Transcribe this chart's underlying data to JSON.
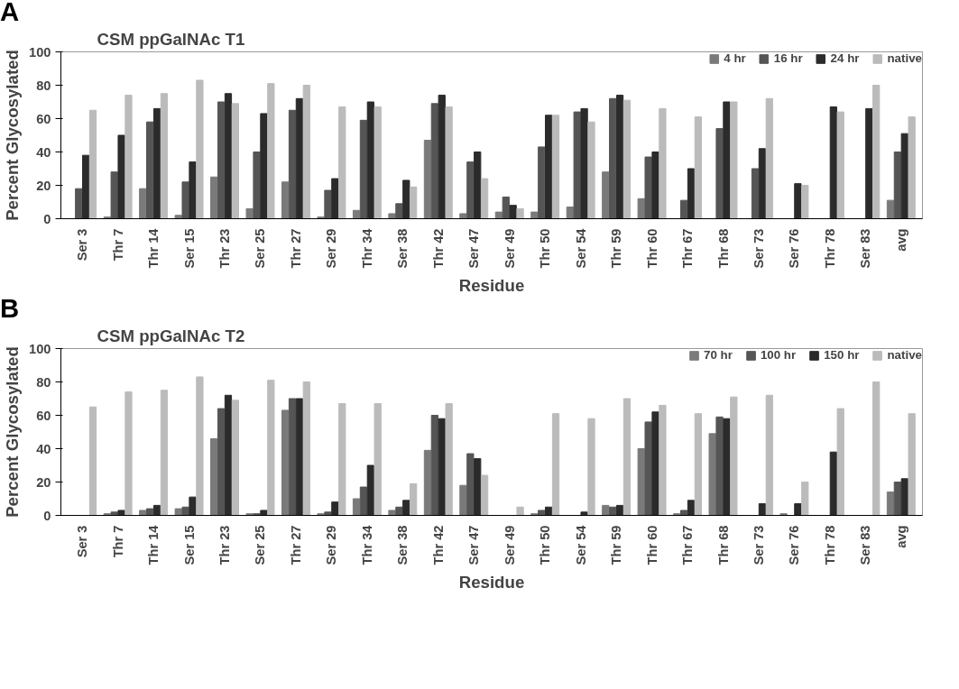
{
  "chart_data": [
    {
      "type": "bar",
      "title": "CSM ppGalNAc T1",
      "xlabel": "Residue",
      "ylabel": "Percent Glycosylated",
      "annotations": [
        "A"
      ],
      "categories": [
        "Ser 3",
        "Thr 7",
        "Thr 14",
        "Ser 15",
        "Thr 23",
        "Ser 25",
        "Thr 27",
        "Ser 29",
        "Thr 34",
        "Ser 38",
        "Thr 42",
        "Ser 47",
        "Ser 49",
        "Thr 50",
        "Ser 54",
        "Thr 59",
        "Thr 60",
        "Thr 67",
        "Thr 68",
        "Ser 73",
        "Ser 76",
        "Thr 78",
        "Ser 83",
        "avg"
      ],
      "series": [
        {
          "name": "4 hr",
          "color": "#7a7a7a",
          "values": [
            0,
            1,
            18,
            2,
            25,
            6,
            22,
            1,
            5,
            3,
            47,
            3,
            4,
            4,
            7,
            28,
            12,
            0,
            0,
            0,
            0,
            0,
            0,
            11
          ]
        },
        {
          "name": "16 hr",
          "color": "#555555",
          "values": [
            18,
            28,
            58,
            22,
            70,
            40,
            65,
            17,
            59,
            9,
            69,
            34,
            13,
            43,
            64,
            72,
            37,
            11,
            54,
            30,
            0,
            0,
            0,
            40
          ]
        },
        {
          "name": "24 hr",
          "color": "#2b2b2b",
          "values": [
            38,
            50,
            66,
            34,
            75,
            63,
            72,
            24,
            70,
            23,
            74,
            40,
            8,
            62,
            66,
            74,
            40,
            30,
            70,
            42,
            21,
            67,
            66,
            51
          ]
        },
        {
          "name": "native",
          "color": "#bbbbbb",
          "values": [
            65,
            74,
            75,
            83,
            69,
            81,
            80,
            67,
            67,
            19,
            67,
            24,
            6,
            62,
            58,
            71,
            66,
            61,
            70,
            72,
            20,
            64,
            80,
            61
          ]
        }
      ],
      "ylim": [
        0,
        100
      ],
      "yticks": [
        0,
        20,
        40,
        60,
        80,
        100
      ],
      "legend": "top right"
    },
    {
      "type": "bar",
      "title": "CSM ppGalNAc T2",
      "xlabel": "Residue",
      "ylabel": "Percent Glycosylated",
      "annotations": [
        "B"
      ],
      "categories": [
        "Ser 3",
        "Thr 7",
        "Thr 14",
        "Ser 15",
        "Thr 23",
        "Ser 25",
        "Thr 27",
        "Ser 29",
        "Thr 34",
        "Ser 38",
        "Thr 42",
        "Ser 47",
        "Ser 49",
        "Thr 50",
        "Ser 54",
        "Thr 59",
        "Thr 60",
        "Thr 67",
        "Thr 68",
        "Ser 73",
        "Ser 76",
        "Thr 78",
        "Ser 83",
        "avg"
      ],
      "series": [
        {
          "name": "70 hr",
          "color": "#7a7a7a",
          "values": [
            0,
            1,
            3,
            4,
            46,
            1,
            63,
            1,
            10,
            3,
            39,
            18,
            0,
            1,
            0,
            6,
            40,
            1,
            49,
            0,
            1,
            0,
            0,
            14
          ]
        },
        {
          "name": "100 hr",
          "color": "#555555",
          "values": [
            0,
            2,
            4,
            5,
            64,
            1,
            70,
            2,
            17,
            5,
            60,
            37,
            0,
            3,
            0,
            5,
            56,
            3,
            59,
            0,
            0,
            0,
            0,
            20
          ]
        },
        {
          "name": "150 hr",
          "color": "#2b2b2b",
          "values": [
            0,
            3,
            6,
            11,
            72,
            3,
            70,
            8,
            30,
            9,
            58,
            34,
            0,
            5,
            2,
            6,
            62,
            9,
            58,
            7,
            7,
            38,
            0,
            22
          ]
        },
        {
          "name": "native",
          "color": "#bbbbbb",
          "values": [
            65,
            74,
            75,
            83,
            69,
            81,
            80,
            67,
            67,
            19,
            67,
            24,
            5,
            61,
            58,
            70,
            66,
            61,
            71,
            72,
            20,
            64,
            80,
            61
          ]
        }
      ],
      "ylim": [
        0,
        100
      ],
      "yticks": [
        0,
        20,
        40,
        60,
        80,
        100
      ],
      "legend": "top right"
    }
  ]
}
